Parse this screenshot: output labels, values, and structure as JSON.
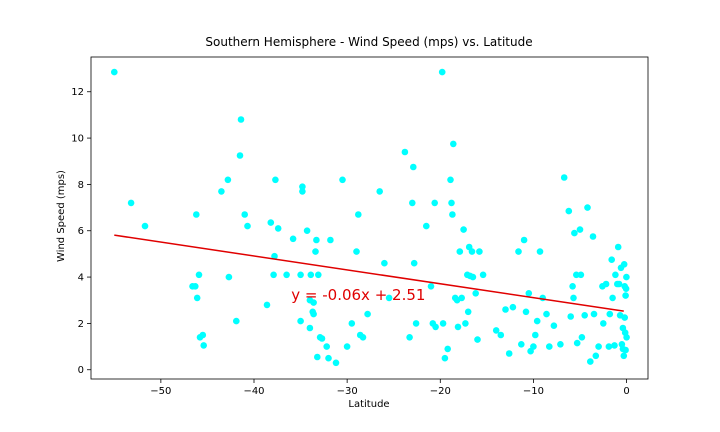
{
  "chart_data": {
    "type": "scatter",
    "title": "Southern Hemisphere - Wind Speed (mps) vs. Latitude",
    "xlabel": "Latitude",
    "ylabel": "Wind Speed (mps)",
    "xlim": [
      -57.5,
      2.3
    ],
    "ylim": [
      -0.4,
      13.5
    ],
    "xticks": [
      -50,
      -40,
      -30,
      -20,
      -10,
      0
    ],
    "yticks": [
      0,
      2,
      4,
      6,
      8,
      10,
      12
    ],
    "xtick_labels": [
      "−50",
      "−40",
      "−30",
      "−20",
      "−10",
      "0"
    ],
    "ytick_labels": [
      "0",
      "2",
      "4",
      "6",
      "8",
      "10",
      "12"
    ],
    "grid": false,
    "point_color": "#00ffff",
    "line_color": "#e00000",
    "regression": {
      "slope": -0.06,
      "intercept": 2.51,
      "x_range": [
        -55,
        -0.3
      ]
    },
    "annotation": {
      "text": "y = -0.06x + 2.51",
      "x": -36,
      "y": 3.0
    },
    "points": [
      [
        -55,
        12.85
      ],
      [
        -53.2,
        7.2
      ],
      [
        -51.7,
        6.2
      ],
      [
        -46.6,
        3.6
      ],
      [
        -46.3,
        3.6
      ],
      [
        -46.2,
        6.7
      ],
      [
        -46.1,
        3.1
      ],
      [
        -45.9,
        4.1
      ],
      [
        -45.8,
        1.4
      ],
      [
        -45.5,
        1.5
      ],
      [
        -45.4,
        1.05
      ],
      [
        -43.5,
        7.7
      ],
      [
        -42.8,
        8.2
      ],
      [
        -42.7,
        4.0
      ],
      [
        -41.9,
        2.1
      ],
      [
        -41.5,
        9.25
      ],
      [
        -41.4,
        10.8
      ],
      [
        -41.0,
        6.7
      ],
      [
        -40.7,
        6.2
      ],
      [
        -38.6,
        2.8
      ],
      [
        -38.2,
        6.35
      ],
      [
        -37.9,
        4.1
      ],
      [
        -37.8,
        4.9
      ],
      [
        -37.7,
        8.2
      ],
      [
        -37.4,
        6.1
      ],
      [
        -36.5,
        4.1
      ],
      [
        -35.8,
        5.65
      ],
      [
        -35.0,
        4.1
      ],
      [
        -35.0,
        2.1
      ],
      [
        -34.8,
        7.9
      ],
      [
        -34.8,
        7.7
      ],
      [
        -34.3,
        6.0
      ],
      [
        -34.0,
        3.0
      ],
      [
        -34.0,
        1.8
      ],
      [
        -33.9,
        4.1
      ],
      [
        -33.7,
        2.5
      ],
      [
        -33.6,
        2.9
      ],
      [
        -33.6,
        2.4
      ],
      [
        -33.4,
        5.1
      ],
      [
        -33.3,
        5.6
      ],
      [
        -33.2,
        0.55
      ],
      [
        -33.1,
        4.1
      ],
      [
        -32.9,
        1.4
      ],
      [
        -32.7,
        1.35
      ],
      [
        -32.2,
        1.0
      ],
      [
        -32.0,
        0.5
      ],
      [
        -31.8,
        5.6
      ],
      [
        -31.2,
        0.3
      ],
      [
        -30.5,
        8.2
      ],
      [
        -30.0,
        1.0
      ],
      [
        -29.5,
        2.0
      ],
      [
        -29.0,
        5.1
      ],
      [
        -28.8,
        6.7
      ],
      [
        -28.6,
        1.5
      ],
      [
        -28.3,
        1.4
      ],
      [
        -27.8,
        2.4
      ],
      [
        -26.5,
        7.7
      ],
      [
        -26.0,
        4.6
      ],
      [
        -25.5,
        3.1
      ],
      [
        -23.8,
        9.4
      ],
      [
        -23.3,
        1.4
      ],
      [
        -23.0,
        7.2
      ],
      [
        -22.9,
        8.75
      ],
      [
        -22.8,
        4.6
      ],
      [
        -22.6,
        2.0
      ],
      [
        -21.5,
        6.2
      ],
      [
        -21.0,
        3.6
      ],
      [
        -20.8,
        2.0
      ],
      [
        -20.6,
        7.2
      ],
      [
        -20.5,
        1.85
      ],
      [
        -19.8,
        12.85
      ],
      [
        -19.7,
        2.0
      ],
      [
        -19.5,
        0.5
      ],
      [
        -19.2,
        0.9
      ],
      [
        -18.9,
        8.2
      ],
      [
        -18.8,
        7.2
      ],
      [
        -18.7,
        6.7
      ],
      [
        -18.6,
        9.75
      ],
      [
        -18.4,
        3.1
      ],
      [
        -18.2,
        3.0
      ],
      [
        -18.1,
        1.85
      ],
      [
        -17.9,
        5.1
      ],
      [
        -17.7,
        3.1
      ],
      [
        -17.5,
        6.05
      ],
      [
        -17.3,
        2.0
      ],
      [
        -17.1,
        4.1
      ],
      [
        -17.0,
        2.5
      ],
      [
        -16.9,
        5.3
      ],
      [
        -16.8,
        4.05
      ],
      [
        -16.6,
        5.1
      ],
      [
        -16.5,
        4.0
      ],
      [
        -16.2,
        3.3
      ],
      [
        -16.0,
        1.3
      ],
      [
        -15.8,
        5.1
      ],
      [
        -15.4,
        4.1
      ],
      [
        -14.0,
        1.7
      ],
      [
        -13.5,
        1.5
      ],
      [
        -13.0,
        2.6
      ],
      [
        -12.6,
        0.7
      ],
      [
        -12.2,
        2.7
      ],
      [
        -11.6,
        5.1
      ],
      [
        -11.3,
        1.1
      ],
      [
        -11.0,
        5.6
      ],
      [
        -10.8,
        2.5
      ],
      [
        -10.5,
        3.3
      ],
      [
        -10.3,
        0.8
      ],
      [
        -10.0,
        1.0
      ],
      [
        -9.8,
        1.5
      ],
      [
        -9.6,
        2.1
      ],
      [
        -9.3,
        5.1
      ],
      [
        -9.0,
        3.1
      ],
      [
        -8.6,
        2.4
      ],
      [
        -8.3,
        1.0
      ],
      [
        -7.8,
        1.9
      ],
      [
        -7.1,
        1.1
      ],
      [
        -6.7,
        8.3
      ],
      [
        -6.2,
        6.85
      ],
      [
        -6.0,
        2.3
      ],
      [
        -5.8,
        3.6
      ],
      [
        -5.7,
        3.1
      ],
      [
        -5.6,
        5.9
      ],
      [
        -5.4,
        4.1
      ],
      [
        -5.3,
        1.15
      ],
      [
        -5.0,
        6.05
      ],
      [
        -4.9,
        4.1
      ],
      [
        -4.8,
        1.4
      ],
      [
        -4.5,
        2.35
      ],
      [
        -4.2,
        7.0
      ],
      [
        -3.9,
        0.35
      ],
      [
        -3.6,
        5.75
      ],
      [
        -3.5,
        2.4
      ],
      [
        -3.3,
        0.6
      ],
      [
        -3.0,
        1.0
      ],
      [
        -2.6,
        3.6
      ],
      [
        -2.5,
        2.0
      ],
      [
        -2.2,
        3.7
      ],
      [
        -1.9,
        1.0
      ],
      [
        -1.8,
        2.4
      ],
      [
        -1.6,
        4.75
      ],
      [
        -1.5,
        3.1
      ],
      [
        -1.3,
        1.05
      ],
      [
        -1.2,
        4.1
      ],
      [
        -1.0,
        3.7
      ],
      [
        -0.9,
        5.3
      ],
      [
        -0.8,
        3.7
      ],
      [
        -0.7,
        2.35
      ],
      [
        -0.6,
        4.4
      ],
      [
        -0.5,
        1.1
      ],
      [
        -0.4,
        0.9
      ],
      [
        -0.4,
        1.8
      ],
      [
        -0.3,
        0.6
      ],
      [
        -0.25,
        4.55
      ],
      [
        -0.2,
        2.25
      ],
      [
        -0.2,
        3.6
      ],
      [
        -0.15,
        1.6
      ],
      [
        -0.1,
        0.85
      ],
      [
        -0.1,
        3.2
      ],
      [
        -0.05,
        3.5
      ],
      [
        -0.02,
        4.0
      ],
      [
        0,
        1.4
      ]
    ]
  }
}
